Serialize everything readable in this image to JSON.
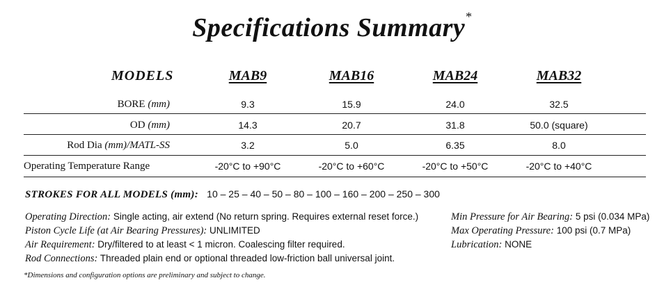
{
  "title": "Specifications Summary",
  "title_mark": "*",
  "header": {
    "models_label": "MODELS",
    "models": [
      "MAB9",
      "MAB16",
      "MAB24",
      "MAB32"
    ]
  },
  "table": {
    "rows": [
      {
        "label": "BORE",
        "unit": "(mm)",
        "values": [
          "9.3",
          "15.9",
          "24.0",
          "32.5"
        ]
      },
      {
        "label": "OD",
        "unit": "(mm)",
        "values": [
          "14.3",
          "20.7",
          "31.8",
          "50.0 (square)"
        ]
      },
      {
        "label": "Rod Dia",
        "unit": "(mm)/MATL-SS",
        "values": [
          "3.2",
          "5.0",
          "6.35",
          "8.0"
        ]
      },
      {
        "label": "Operating Temperature Range",
        "unit": "",
        "values": [
          "-20°C to +90°C",
          "-20°C to +60°C",
          "-20°C to +50°C",
          "-20°C to +40°C"
        ]
      }
    ]
  },
  "strokes": {
    "label": "STROKES FOR ALL MODELS (mm):",
    "values": "10 – 25 – 40 – 50 – 80 – 100 – 160 – 200 – 250 – 300"
  },
  "specs_left": [
    {
      "label": "Operating Direction:",
      "value": "Single acting, air extend  (No return spring. Requires external reset force.)"
    },
    {
      "label": "Piston Cycle Life (at Air Bearing Pressures):",
      "value": "UNLIMITED"
    },
    {
      "label": "Air Requirement:",
      "value": "Dry/filtered to at least < 1 micron. Coalescing filter required."
    },
    {
      "label": "Rod Connections:",
      "value": "Threaded plain end or optional threaded low-friction ball universal joint."
    }
  ],
  "specs_right": [
    {
      "label": "Min Pressure for Air Bearing:",
      "value": "5 psi (0.034 MPa)"
    },
    {
      "label": "Max Operating Pressure:",
      "value": "100 psi (0.7 MPa)"
    },
    {
      "label": "Lubrication:",
      "value": "NONE"
    }
  ],
  "footnote": "*Dimensions and configuration options are preliminary and subject to change."
}
